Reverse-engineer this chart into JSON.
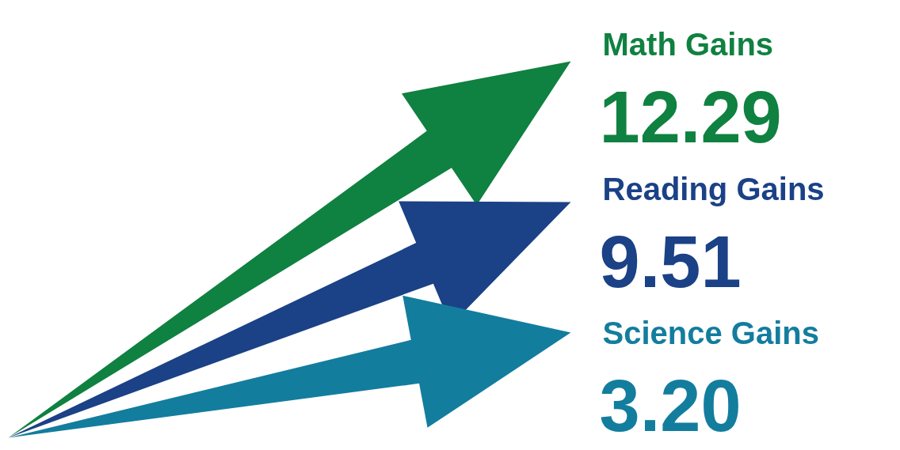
{
  "chart_data": {
    "type": "other",
    "categories": [
      "Math Gains",
      "Reading Gains",
      "Science Gains"
    ],
    "values": [
      12.29,
      9.51,
      3.2
    ],
    "value_labels": [
      "12.29",
      "9.51",
      "3.20"
    ],
    "colors": [
      "#0f8140",
      "#1b4186",
      "#137d9e"
    ]
  }
}
